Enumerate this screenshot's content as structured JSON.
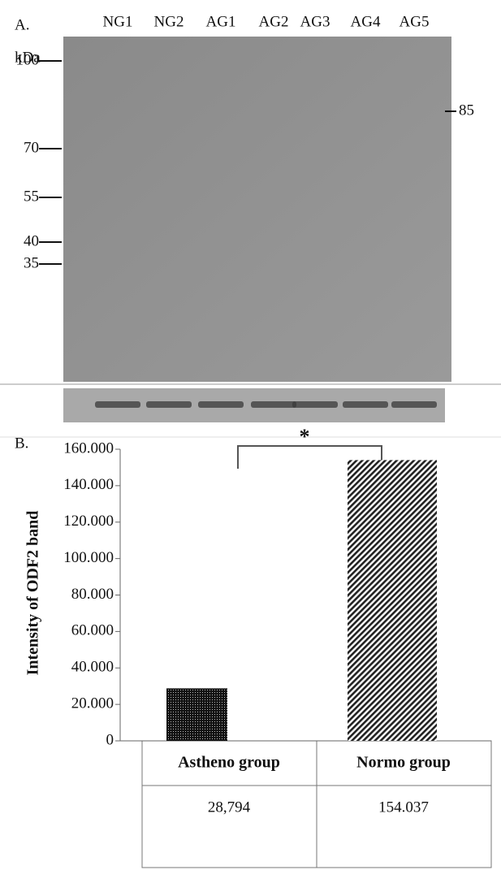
{
  "blot": {
    "panel_label": "A.",
    "lanes": [
      "NG1",
      "NG2",
      "AG1",
      "AG2",
      "AG3",
      "AG4",
      "AG5"
    ],
    "unit": "kDa",
    "markers": [
      100,
      70,
      55,
      40,
      35
    ],
    "band_label": 85
  },
  "chart_data": {
    "type": "bar",
    "panel_label": "B.",
    "ylabel": "Intensity of ODF2 band",
    "categories": [
      "Astheno group",
      "Normo group"
    ],
    "values": [
      28794,
      154037
    ],
    "value_labels": [
      "28,794",
      "154.037"
    ],
    "ylim": [
      0,
      160000
    ],
    "yticks": [
      0,
      {
        "value": 20000,
        "label": "20.000"
      },
      {
        "value": 40000,
        "label": "40.000"
      },
      {
        "value": 60000,
        "label": "60.000"
      },
      {
        "value": 80000,
        "label": "80.000"
      },
      {
        "value": 100000,
        "label": "100.000"
      },
      {
        "value": 120000,
        "label": "120.000"
      },
      {
        "value": 140000,
        "label": "140.000"
      },
      {
        "value": 160000,
        "label": "160.000"
      }
    ],
    "annotation": "*"
  }
}
